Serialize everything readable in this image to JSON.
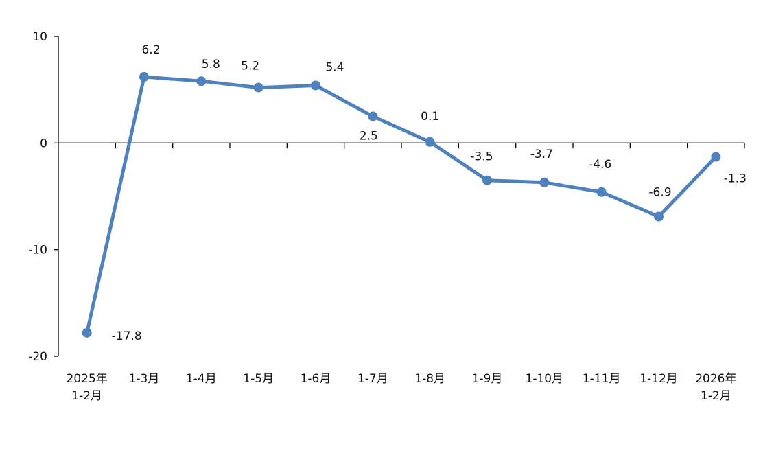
{
  "chart_data": {
    "type": "line",
    "title": "",
    "xlabel": "",
    "ylabel": "",
    "categories": [
      [
        "2025年",
        "1-2月"
      ],
      [
        "1-3月"
      ],
      [
        "1-4月"
      ],
      [
        "1-5月"
      ],
      [
        "1-6月"
      ],
      [
        "1-7月"
      ],
      [
        "1-8月"
      ],
      [
        "1-9月"
      ],
      [
        "1-10月"
      ],
      [
        "1-11月"
      ],
      [
        "1-12月"
      ],
      [
        "2026年",
        "1-2月"
      ]
    ],
    "series": [
      {
        "values": [
          -17.8,
          6.2,
          5.8,
          5.2,
          5.4,
          2.5,
          0.1,
          -3.5,
          -3.7,
          -4.6,
          -6.9,
          -1.3
        ],
        "color": "#4F81BD"
      }
    ],
    "ylim": [
      -20,
      10
    ],
    "yticks": [
      "10",
      "0",
      "-10",
      "-20"
    ],
    "data_labels": [
      "-17.8",
      "6.2",
      "5.8",
      "5.2",
      "5.4",
      "2.5",
      "0.1",
      "-3.5",
      "-3.7",
      "-4.6",
      "-6.9",
      "-1.3"
    ],
    "grid": false,
    "legend": "none"
  }
}
